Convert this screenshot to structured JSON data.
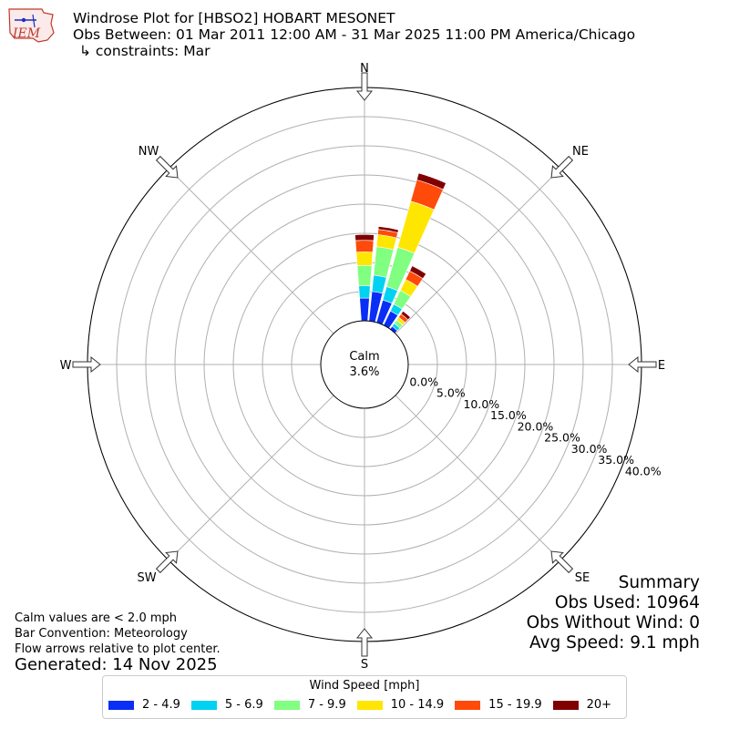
{
  "header": {
    "title": "Windrose Plot for [HBSO2] HOBART MESONET",
    "obs_between": "Obs Between: 01 Mar 2011 12:00 AM - 31 Mar 2025 11:00 PM America/Chicago",
    "constraints": "↳ constraints: Mar"
  },
  "logo": {
    "text": "IEM",
    "icon": "iem-logo-icon"
  },
  "notes": {
    "calm_def": "Calm values are < 2.0 mph",
    "bar_convention": "Bar Convention: Meteorology",
    "flow_arrows": "Flow arrows relative to plot center.",
    "generated": "Generated: 14 Nov 2025"
  },
  "summary": {
    "heading": "Summary",
    "obs_used": "Obs Used: 10964",
    "obs_without_wind": "Obs Without Wind: 0",
    "avg_speed": "Avg Speed: 9.1 mph"
  },
  "legend": {
    "title": "Wind Speed [mph]",
    "items": [
      {
        "label": "2 - 4.9",
        "color": "#0a2ef5"
      },
      {
        "label": "5 - 6.9",
        "color": "#00d2f2"
      },
      {
        "label": "7 - 9.9",
        "color": "#80ff80"
      },
      {
        "label": "10 - 14.9",
        "color": "#ffe600"
      },
      {
        "label": "15 - 19.9",
        "color": "#ff4a0a"
      },
      {
        "label": "20+",
        "color": "#800000"
      }
    ]
  },
  "chart_data": {
    "type": "windrose",
    "calm_label": "Calm",
    "calm_value": "3.6%",
    "r_ticks": [
      "0.0%",
      "5.0%",
      "10.0%",
      "15.0%",
      "20.0%",
      "25.0%",
      "30.0%",
      "35.0%",
      "40.0%"
    ],
    "rmax": 40,
    "directions": [
      "N",
      "NE",
      "E",
      "SE",
      "S",
      "SW",
      "W",
      "NW"
    ],
    "bin_labels": [
      "2 - 4.9",
      "5 - 6.9",
      "7 - 9.9",
      "10 - 14.9",
      "15 - 19.9",
      "20+"
    ],
    "colors": [
      "#0a2ef5",
      "#00d2f2",
      "#80ff80",
      "#ffe600",
      "#ff4a0a",
      "#800000"
    ],
    "sectors": [
      {
        "dir_deg": 0,
        "cum": [
          3.9,
          6.0,
          9.5,
          11.8,
          13.8,
          14.8
        ]
      },
      {
        "dir_deg": 10,
        "cum": [
          5.1,
          7.9,
          12.8,
          14.9,
          15.8,
          16.3
        ]
      },
      {
        "dir_deg": 20,
        "cum": [
          4.0,
          6.4,
          13.4,
          21.6,
          25.4,
          26.6
        ]
      },
      {
        "dir_deg": 30,
        "cum": [
          2.7,
          4.0,
          6.6,
          8.7,
          10.3,
          11.3
        ]
      },
      {
        "dir_deg": 40,
        "cum": [
          0.6,
          1.2,
          1.9,
          2.5,
          3.2,
          3.8
        ]
      },
      {
        "dir_deg": 50,
        "cum": [
          0.03,
          0.05,
          0.08,
          0.1,
          0.12,
          0.13
        ]
      },
      {
        "dir_deg": 180,
        "cum": [
          0.02,
          0.03,
          0.05,
          0.06,
          0.07,
          0.08
        ]
      }
    ]
  }
}
